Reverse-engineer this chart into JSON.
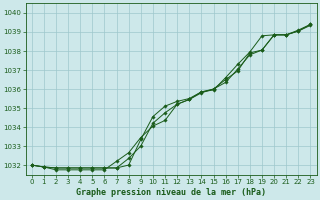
{
  "xlabel": "Graphe pression niveau de la mer (hPa)",
  "xlim": [
    -0.5,
    23.5
  ],
  "ylim": [
    1031.5,
    1040.5
  ],
  "yticks": [
    1032,
    1033,
    1034,
    1035,
    1036,
    1037,
    1038,
    1039,
    1040
  ],
  "xticks": [
    0,
    1,
    2,
    3,
    4,
    5,
    6,
    7,
    8,
    9,
    10,
    11,
    12,
    13,
    14,
    15,
    16,
    17,
    18,
    19,
    20,
    21,
    22,
    23
  ],
  "background_color": "#cde8ea",
  "grid_color": "#9ec8cc",
  "line_color": "#1a5c1a",
  "series": [
    [
      1032.0,
      1031.9,
      1031.85,
      1031.85,
      1031.85,
      1031.85,
      1031.85,
      1031.85,
      1032.0,
      1033.35,
      1034.55,
      1035.1,
      1035.35,
      1035.5,
      1035.85,
      1036.0,
      1036.5,
      1036.95,
      1037.9,
      1038.05,
      1038.85,
      1038.85,
      1039.05,
      1039.4
    ],
    [
      1032.0,
      1031.9,
      1031.85,
      1031.85,
      1031.85,
      1031.85,
      1031.85,
      1031.85,
      1032.35,
      1033.0,
      1034.2,
      1034.75,
      1035.2,
      1035.45,
      1035.8,
      1036.0,
      1036.35,
      1037.05,
      1037.8,
      1038.05,
      1038.85,
      1038.85,
      1039.05,
      1039.35
    ],
    [
      1032.0,
      1031.9,
      1031.75,
      1031.75,
      1031.75,
      1031.75,
      1031.75,
      1032.2,
      1032.65,
      1033.45,
      1034.05,
      1034.35,
      1035.2,
      1035.45,
      1035.85,
      1035.95,
      1036.6,
      1037.3,
      1037.95,
      1038.8,
      1038.85,
      1038.85,
      1039.1,
      1039.4
    ]
  ]
}
